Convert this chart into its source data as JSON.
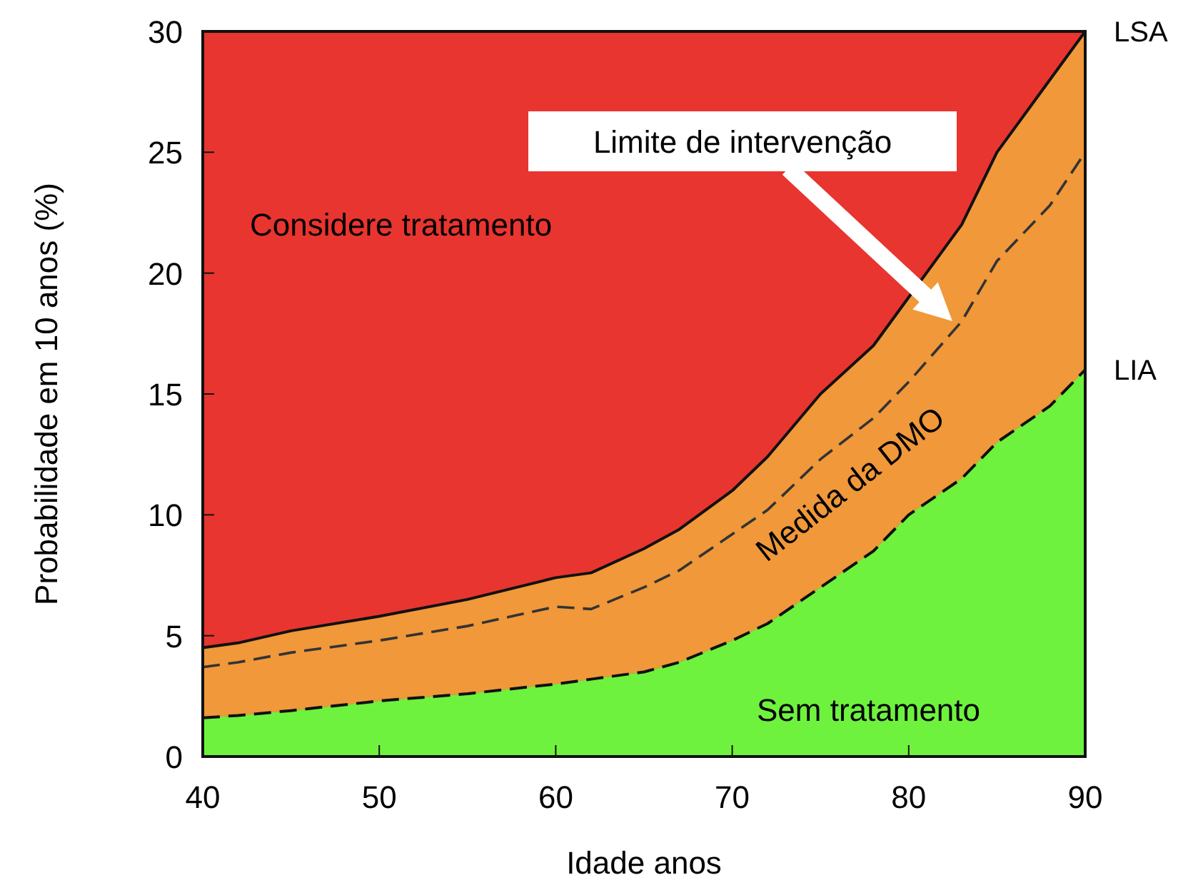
{
  "chart_data": {
    "type": "area",
    "xlabel": "Idade anos",
    "ylabel": "Probabilidade em 10 anos (%)",
    "x": [
      40,
      42,
      45,
      50,
      55,
      60,
      62,
      65,
      67,
      70,
      72,
      75,
      78,
      80,
      83,
      85,
      88,
      90
    ],
    "xlim": [
      40,
      90
    ],
    "xticks": [
      40,
      50,
      60,
      70,
      80,
      90
    ],
    "ylim": [
      0,
      30
    ],
    "yticks": [
      0,
      5,
      10,
      15,
      20,
      25,
      30
    ],
    "grid": false,
    "bands": [
      {
        "axis": "y",
        "from": 0,
        "to": 30,
        "color": "#e8352f",
        "label": null
      }
    ],
    "series": [
      {
        "name": "LSA",
        "color": "#f0983a",
        "line_style": "solid",
        "values": [
          4.5,
          4.7,
          5.2,
          5.8,
          6.5,
          7.4,
          7.6,
          8.6,
          9.4,
          11,
          12.4,
          15,
          17,
          19,
          22,
          25,
          28,
          30
        ]
      },
      {
        "name": "LIA",
        "color": "#6ef23e",
        "line_style": "dashed",
        "values": [
          1.6,
          1.7,
          1.9,
          2.3,
          2.6,
          3.0,
          3.2,
          3.5,
          3.9,
          4.8,
          5.5,
          7,
          8.5,
          10,
          11.5,
          13,
          14.5,
          16
        ]
      },
      {
        "type": "line",
        "color": "#333333",
        "line_style": "dashed",
        "values": [
          3.7,
          3.9,
          4.3,
          4.8,
          5.4,
          6.2,
          6.1,
          7,
          7.7,
          9.2,
          10.2,
          12.3,
          14,
          15.5,
          18,
          20.5,
          22.8,
          25
        ]
      }
    ],
    "annotations": [
      "Considere tratamento",
      "Medida da DMO",
      "Sem tratamento",
      "Limite de intervenção"
    ]
  }
}
